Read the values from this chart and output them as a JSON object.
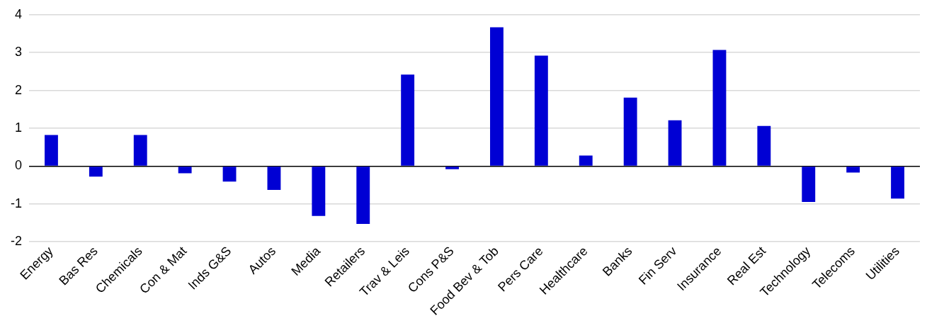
{
  "chart_data": {
    "type": "bar",
    "categories": [
      "Energy",
      "Bas Res",
      "Chemicals",
      "Con & Mat",
      "Inds G&S",
      "Autos",
      "Media",
      "Retailers",
      "Trav & Leis",
      "Cons P&S",
      "Food Bev & Tob",
      "Pers Care",
      "Healthcare",
      "Banks",
      "Fin Serv",
      "Insurance",
      "Real Est",
      "Technology",
      "Telecoms",
      "Utilities"
    ],
    "values": [
      0.82,
      -0.28,
      0.82,
      -0.19,
      -0.41,
      -0.63,
      -1.32,
      -1.53,
      2.42,
      -0.08,
      3.67,
      2.92,
      0.28,
      1.81,
      1.21,
      3.07,
      1.06,
      -0.95,
      -0.17,
      -0.86
    ],
    "color": "#0000d4",
    "ylim": [
      -2,
      4
    ],
    "yticks": [
      -2,
      -1,
      0,
      1,
      2,
      3,
      4
    ],
    "grid": "y",
    "legend": false
  }
}
